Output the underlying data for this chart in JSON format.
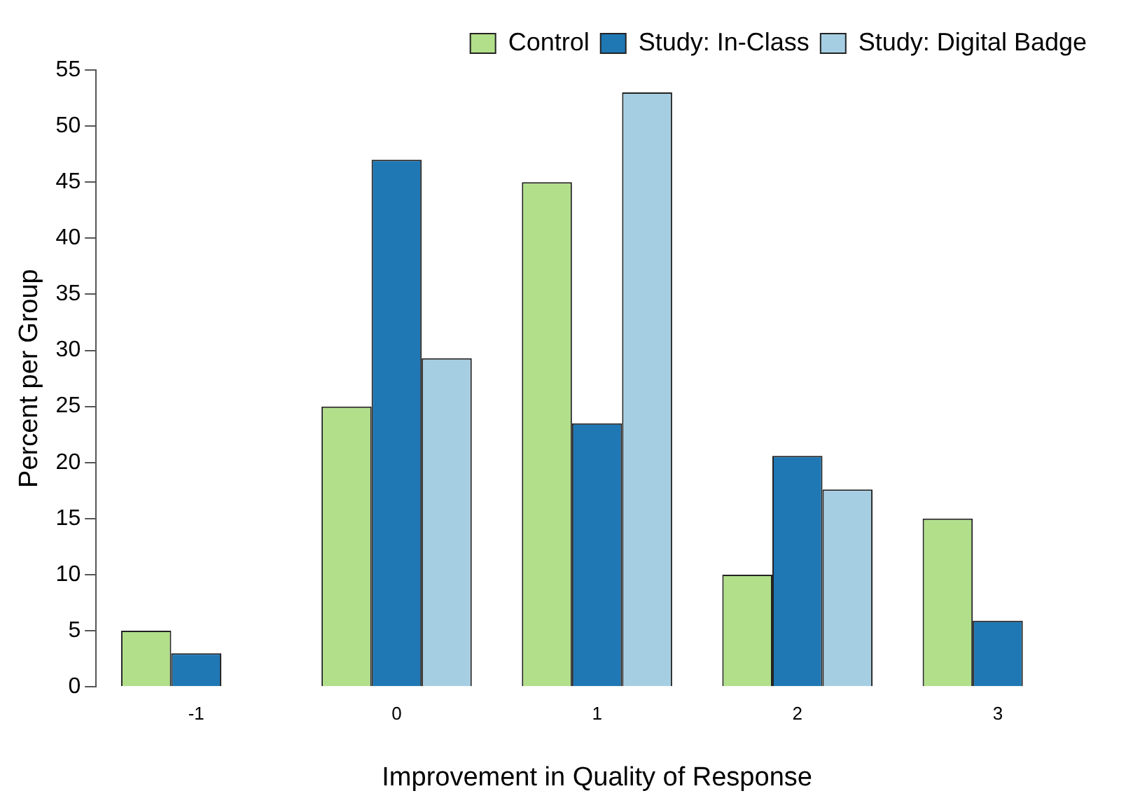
{
  "chart_data": {
    "type": "bar",
    "xlabel": "Improvement in Quality of Response",
    "ylabel": "Percent per Group",
    "categories": [
      "-1",
      "0",
      "1",
      "2",
      "3"
    ],
    "series": [
      {
        "name": "Control",
        "color": "#b2df8a",
        "values": [
          5,
          25,
          45,
          10,
          15
        ]
      },
      {
        "name": "Study: In-Class",
        "color": "#1f78b4",
        "values": [
          3,
          47,
          23.5,
          20.6,
          5.9
        ]
      },
      {
        "name": "Study: Digital Badge",
        "color": "#a6cee3",
        "values": [
          0,
          29.3,
          53,
          17.6,
          0
        ]
      }
    ],
    "ylim": [
      0,
      55
    ],
    "yticks": [
      0,
      5,
      10,
      15,
      20,
      25,
      30,
      35,
      40,
      45,
      50,
      55
    ],
    "grid": false,
    "legend": "top right"
  }
}
